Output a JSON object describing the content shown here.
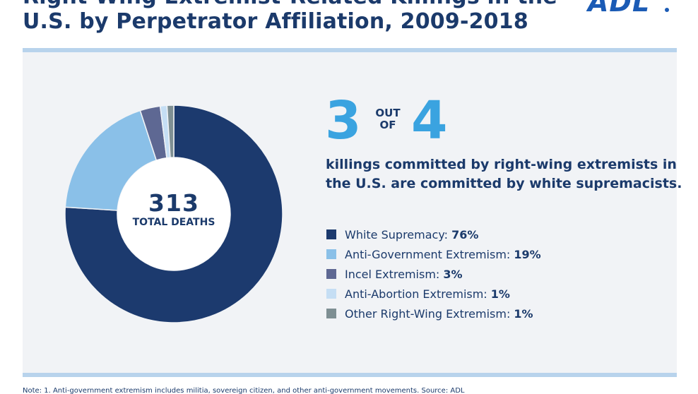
{
  "header": {
    "title_line1": "Right-Wing Extremist-Related Killings in the",
    "title_line2": "U.S. by Perpetrator Affiliation, 2009-2018",
    "logo_text": "ADL"
  },
  "summary": {
    "total_value": "313",
    "total_label": "TOTAL DEATHS",
    "big_numerator": "3",
    "out_word": "OUT",
    "of_word": "OF",
    "big_denominator": "4",
    "statement_line1": "killings committed by right-wing extremists in",
    "statement_line2": "the U.S. are committed by white supremacists."
  },
  "chart_data": {
    "type": "pie",
    "title": "Right-Wing Extremist-Related Killings in the U.S. by Perpetrator Affiliation, 2009-2018",
    "center_label": "313 TOTAL DEATHS",
    "categories": [
      "White Supremacy",
      "Anti-Government Extremism",
      "Incel Extremism",
      "Anti-Abortion Extremism",
      "Other Right-Wing Extremism"
    ],
    "values": [
      76,
      19,
      3,
      1,
      1
    ],
    "value_labels": [
      "76%",
      "19%",
      "3%",
      "1%",
      "1%"
    ],
    "colors": [
      "#1c3a6e",
      "#8ac0e8",
      "#5e6893",
      "#c5def4",
      "#7e8f93"
    ],
    "legend_position": "right"
  },
  "footnote": {
    "text": "Note: 1. Anti-government extremism includes militia, sovereign citizen, and other anti-government movements.          Source: ADL"
  }
}
